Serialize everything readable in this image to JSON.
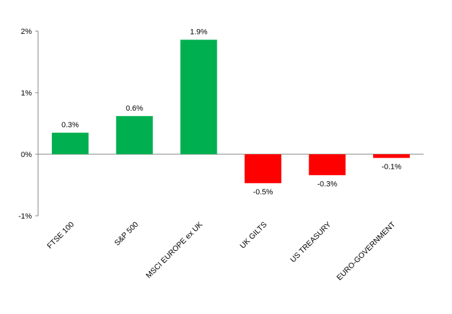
{
  "chart_data": {
    "type": "bar",
    "title": "",
    "xlabel": "",
    "ylabel": "",
    "ylim": [
      -1,
      2
    ],
    "y_ticks": [
      "2%",
      "1%",
      "0%",
      "-1%"
    ],
    "categories": [
      "FTSE 100",
      "S&P 500",
      "MSCI EUROPE ex UK",
      "UK GILTS",
      "US TREASURY",
      "EURO-GOVERNMENT"
    ],
    "values": [
      0.35,
      0.62,
      1.86,
      -0.47,
      -0.34,
      -0.06
    ],
    "data_labels": [
      "0.3%",
      "0.6%",
      "1.9%",
      "-0.5%",
      "-0.3%",
      "-0.1%"
    ],
    "colors": {
      "positive": "#00b050",
      "negative": "#ff0000",
      "axis": "#808080"
    },
    "grid": false,
    "legend": "none"
  }
}
